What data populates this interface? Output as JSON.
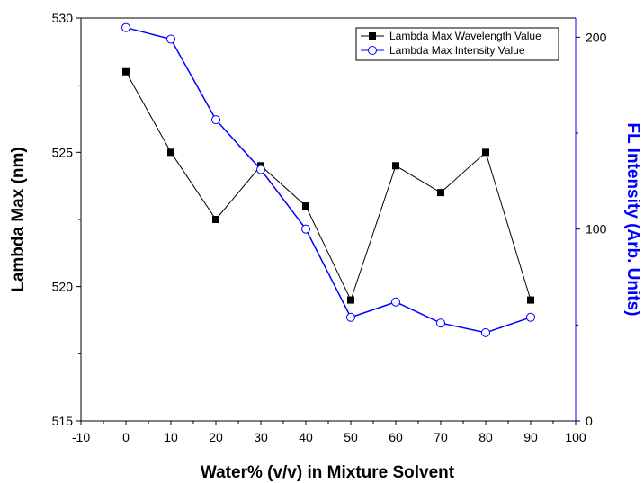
{
  "chart_data": {
    "type": "line",
    "xlabel": "Water% (v/v) in Mixture Solvent",
    "ylabel": "Lambda Max (nm)",
    "y2label": "FL Intensity (Arb. Units)",
    "xlim": [
      -10,
      100
    ],
    "ylim": [
      515,
      530
    ],
    "y2lim": [
      0,
      210
    ],
    "x_ticks": [
      "-10",
      "0",
      "10",
      "20",
      "30",
      "40",
      "50",
      "60",
      "70",
      "80",
      "90",
      "100"
    ],
    "y_ticks": [
      "515",
      "520",
      "525",
      "530"
    ],
    "y2_ticks": [
      "0",
      "100",
      "200"
    ],
    "x": [
      0,
      10,
      20,
      30,
      40,
      50,
      60,
      70,
      80,
      90
    ],
    "series": [
      {
        "name": "Lambda Max Wavelength Value",
        "axis": "left",
        "color": "#000000",
        "marker": "filled-square",
        "values": [
          528.0,
          525.0,
          522.5,
          524.5,
          523.0,
          519.5,
          524.5,
          523.5,
          525.0,
          519.5
        ]
      },
      {
        "name": "Lambda Max Intensity Value",
        "axis": "right",
        "color": "#0000ff",
        "marker": "open-circle",
        "values": [
          205,
          199,
          157,
          131,
          100,
          54,
          62,
          51,
          46,
          54
        ]
      }
    ],
    "legend_position": "top-right",
    "grid": false,
    "right_axis_color": "#0000ff"
  }
}
